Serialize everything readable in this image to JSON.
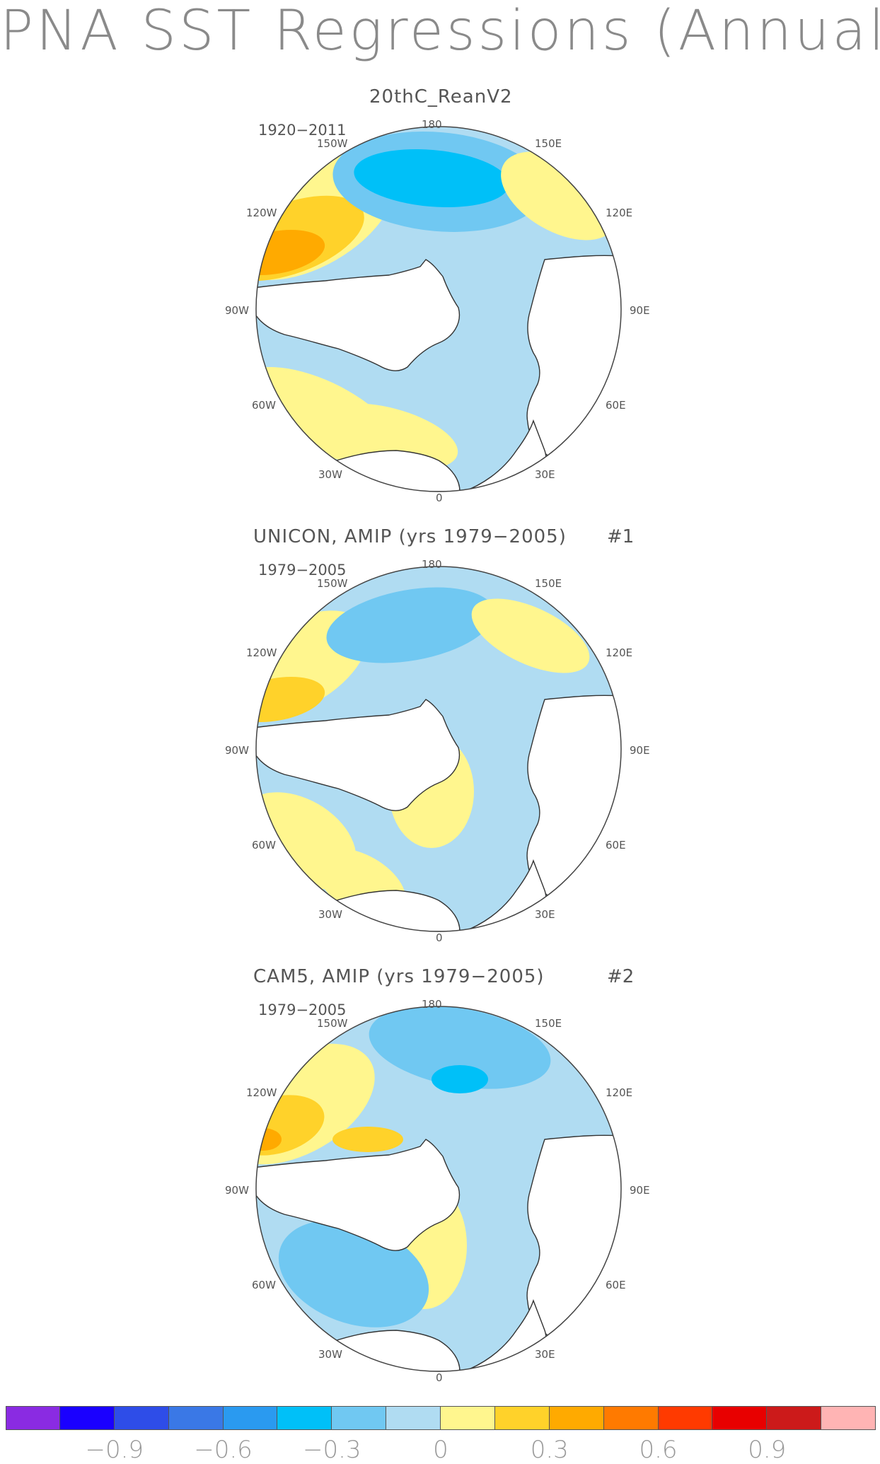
{
  "title": "PNA SST Regressions (Annual)",
  "panels": [
    {
      "title": "20thC_ReanV2",
      "number": "",
      "period": "1920−2011",
      "title_left": 522
    },
    {
      "title": "UNICON, AMIP (yrs 1979−2005)",
      "number": "#1",
      "period": "1979−2005",
      "title_left": 358
    },
    {
      "title": "CAM5, AMIP (yrs 1979−2005)",
      "number": "#2",
      "period": "1979−2005",
      "title_left": 358
    }
  ],
  "lon_labels": {
    "l180": "180",
    "l150w": "150W",
    "l150e": "150E",
    "l120w": "120W",
    "l120e": "120E",
    "l90w": "90W",
    "l90e": "90E",
    "l60w": "60W",
    "l60e": "60E",
    "l30w": "30W",
    "l30e": "30E",
    "l0": "0"
  },
  "colorbar": {
    "colors": [
      "#8a2be2",
      "#1a00ff",
      "#2e4de8",
      "#3a78e6",
      "#2a9af0",
      "#00c0f8",
      "#70c8f2",
      "#b0dcf2",
      "#fff68e",
      "#ffd22a",
      "#ffaa00",
      "#ff7a00",
      "#ff3a00",
      "#e80000",
      "#cc1a1a",
      "#ffb4b4"
    ],
    "tick_labels": [
      "−0.9",
      "−0.6",
      "−0.3",
      "0",
      "0.3",
      "0.6",
      "0.9"
    ],
    "tick_values": [
      -0.9,
      -0.6,
      -0.3,
      0,
      0.3,
      0.6,
      0.9
    ]
  },
  "map_colors": {
    "land": "#ffffff",
    "coast": "#333333",
    "neutral_neg": "#b0dcf2",
    "neutral_pos": "#fff68e",
    "weak_pos": "#ffd22a",
    "mod_pos": "#ffaa00",
    "strong_pos": "#ff7a00",
    "weak_neg": "#70c8f2",
    "mod_neg": "#00c0f8",
    "strong_neg": "#2a9af0"
  }
}
